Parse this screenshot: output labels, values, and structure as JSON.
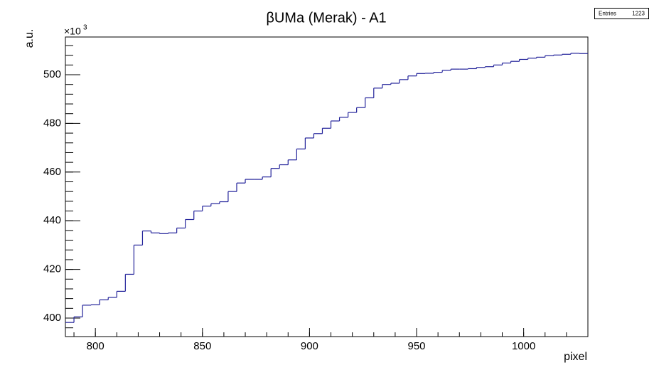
{
  "chart_data": {
    "type": "histogram",
    "title": "βUMa (Merak) - A1",
    "x_label": "pixel",
    "y_label": "a.u.",
    "y_multiplier": "×10",
    "y_multiplier_exponent": "3",
    "stats": {
      "label": "Entries",
      "value": 1223
    },
    "color": "#22229a",
    "bins": [
      786,
      790,
      794,
      798,
      802,
      806,
      810,
      814,
      818,
      822,
      826,
      830,
      834,
      838,
      842,
      846,
      850,
      854,
      858,
      862,
      866,
      870,
      874,
      878,
      882,
      886,
      890,
      894,
      898,
      902,
      906,
      910,
      914,
      918,
      922,
      926,
      930,
      934,
      938,
      942,
      946,
      950,
      954,
      958,
      962,
      966,
      970,
      974,
      978,
      982,
      986,
      990,
      994,
      998,
      1002,
      1006,
      1010,
      1014,
      1018,
      1022,
      1026,
      1030
    ],
    "counts": [
      398.2,
      400.5,
      405.3,
      405.5,
      407.5,
      408.5,
      411,
      418,
      430,
      435.8,
      435,
      434.7,
      435,
      437,
      440.5,
      444,
      446,
      447,
      447.8,
      452,
      455.5,
      457,
      457,
      458,
      461.5,
      463,
      465,
      469.5,
      474,
      475.8,
      478,
      481,
      482.5,
      484.5,
      486.5,
      490.5,
      494.5,
      496,
      496.5,
      498,
      499.5,
      500.5,
      500.6,
      501,
      501.8,
      502.3,
      502.3,
      502.5,
      503,
      503.3,
      504,
      504.8,
      505.5,
      506.3,
      506.8,
      507.2,
      507.8,
      508.1,
      508.4,
      508.8,
      508.7
    ],
    "xlim": [
      786,
      1030
    ],
    "xticks": [
      800,
      850,
      900,
      950,
      1000
    ],
    "ylim": [
      392.4,
      515.5
    ],
    "yticks": [
      400,
      420,
      440,
      460,
      480,
      500
    ]
  }
}
